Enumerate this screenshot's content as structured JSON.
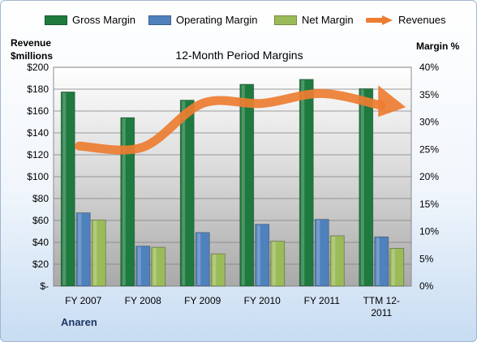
{
  "chart_data": {
    "type": "bar",
    "title": "12-Month Period Margins",
    "categories": [
      "FY 2007",
      "FY 2008",
      "FY 2009",
      "FY 2010",
      "FY 2011",
      "TTM 12-2011"
    ],
    "series": [
      {
        "name": "Gross Margin",
        "axis": "right",
        "color": "#1e7a3e",
        "values": [
          35.5,
          30.8,
          34.0,
          36.9,
          37.8,
          36.1
        ]
      },
      {
        "name": "Operating Margin",
        "axis": "right",
        "color": "#4f81bd",
        "values": [
          13.4,
          7.3,
          9.8,
          11.3,
          12.2,
          9.0
        ]
      },
      {
        "name": "Net Margin",
        "axis": "right",
        "color": "#9bbb59",
        "values": [
          12.1,
          7.1,
          5.9,
          8.2,
          9.2,
          6.9
        ]
      },
      {
        "name": "Revenues",
        "axis": "left",
        "type": "line",
        "color": "#ed7d31",
        "values": [
          128,
          127,
          167,
          167,
          176,
          165
        ]
      }
    ],
    "yleft": {
      "title_line1": "Revenue",
      "title_line2": "$millions",
      "min": 0,
      "max": 200,
      "step": 20,
      "ticks": [
        "$-",
        "$20",
        "$40",
        "$60",
        "$80",
        "$100",
        "$120",
        "$140",
        "$160",
        "$180",
        "$200"
      ]
    },
    "yright": {
      "title": "Margin %",
      "min": 0,
      "max": 40,
      "step": 5,
      "ticks": [
        "0%",
        "5%",
        "10%",
        "15%",
        "20%",
        "25%",
        "30%",
        "35%",
        "40%"
      ]
    },
    "grid": true,
    "legend": "top"
  },
  "company": "Anaren"
}
